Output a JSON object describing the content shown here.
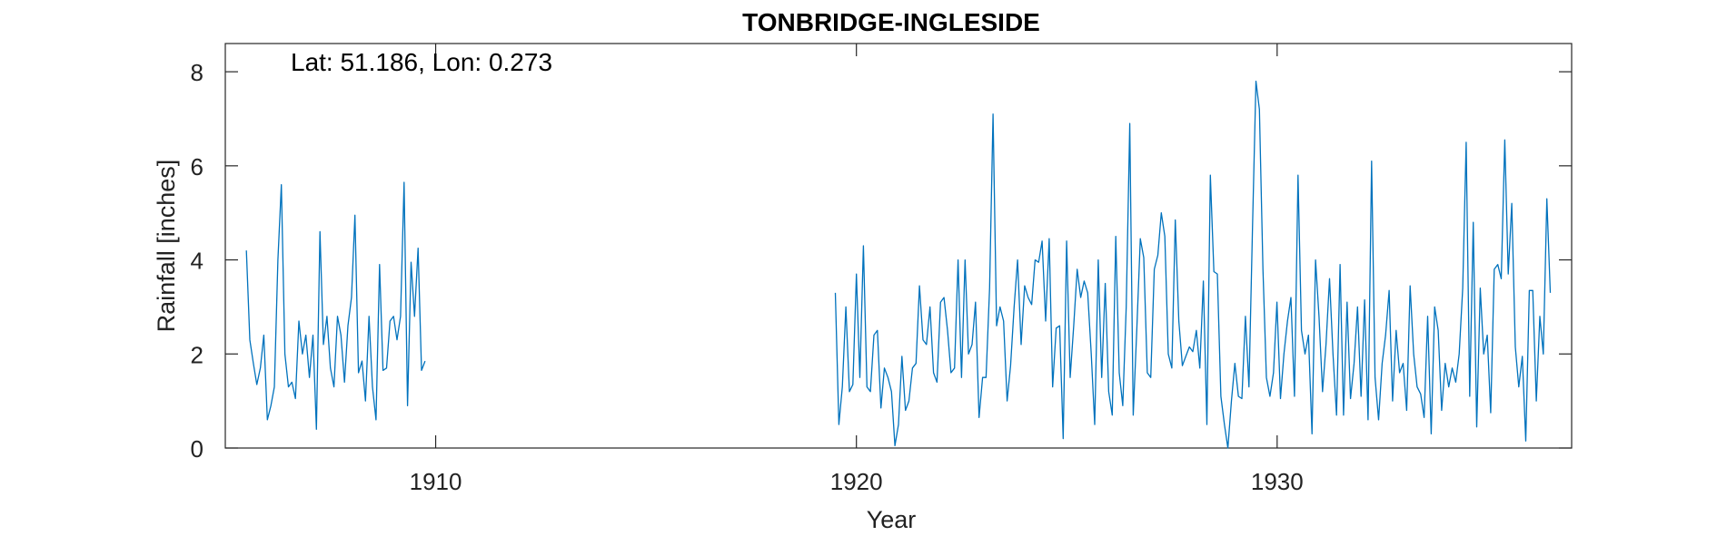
{
  "chart_data": {
    "type": "line",
    "title": "TONBRIDGE-INGLESIDE",
    "xlabel": "Year",
    "ylabel": "Rainfall [inches]",
    "annotation": "Lat: 51.186, Lon: 0.273",
    "xlim": [
      1905,
      1937
    ],
    "ylim": [
      0,
      8.6
    ],
    "xticks": [
      1910,
      1920,
      1930
    ],
    "yticks": [
      0,
      2,
      4,
      6,
      8
    ],
    "grid": false,
    "color": "#0072bd",
    "series": [
      {
        "segments": [
          {
            "start_year": 1905.5,
            "step": 0.0833,
            "values": [
              4.2,
              2.3,
              1.8,
              1.35,
              1.7,
              2.4,
              0.6,
              0.9,
              1.3,
              4.0,
              5.6,
              2.0,
              1.3,
              1.4,
              1.05,
              2.7,
              2.0,
              2.4,
              1.5,
              2.4,
              0.4,
              4.6,
              2.2,
              2.8,
              1.7,
              1.3,
              2.8,
              2.4,
              1.4,
              2.6,
              3.2,
              4.95,
              1.6,
              1.85,
              1.0,
              2.8,
              1.3,
              0.6,
              3.9,
              1.65,
              1.7,
              2.7,
              2.8,
              2.3,
              2.8,
              5.65,
              0.9,
              3.95,
              2.8,
              4.25,
              1.65,
              1.85
            ]
          },
          {
            "start_year": 1919.5,
            "step": 0.0833,
            "values": [
              3.3,
              0.5,
              1.3,
              3.0,
              1.2,
              1.35,
              3.7,
              1.5,
              4.3,
              1.3,
              1.2,
              2.4,
              2.5,
              0.85,
              1.7,
              1.5,
              1.2,
              0.05,
              0.5,
              1.95,
              0.8,
              1.0,
              1.7,
              1.8,
              3.45,
              2.3,
              2.2,
              3.0,
              1.6,
              1.4,
              3.1,
              3.2,
              2.5,
              1.6,
              1.7,
              4.0,
              1.5,
              4.0,
              2.0,
              2.2,
              3.1,
              0.65,
              1.5,
              1.5,
              3.4,
              7.1,
              2.6,
              3.0,
              2.7,
              1.0,
              1.75,
              3.0,
              4.0,
              2.2,
              3.45,
              3.2,
              3.05,
              4.0,
              3.95,
              4.4,
              2.7,
              4.45,
              1.3,
              2.55,
              2.6,
              0.2,
              4.4,
              1.5,
              2.6,
              3.8,
              3.2,
              3.55,
              3.3,
              2.0,
              0.5,
              4.0,
              1.5,
              3.5,
              1.2,
              0.7,
              4.5,
              1.6,
              0.9,
              3.0,
              6.9,
              0.7,
              2.5,
              4.45,
              4.05,
              1.6,
              1.5,
              3.8,
              4.1,
              5.0,
              4.5,
              2.0,
              1.7,
              4.85,
              2.7,
              1.75,
              1.95,
              2.15,
              2.05,
              2.5,
              1.7,
              3.55,
              0.5,
              5.8,
              3.75,
              3.7,
              1.1,
              0.5,
              0.0,
              1.0,
              1.8,
              1.1,
              1.05,
              2.8,
              1.3,
              4.6,
              7.8,
              7.2,
              3.8,
              1.5,
              1.1,
              1.6,
              3.1,
              1.05,
              2.0,
              2.7,
              3.2,
              1.1,
              5.8,
              2.5,
              2.0,
              2.4,
              0.3,
              4.0,
              2.8,
              1.2,
              2.2,
              3.6,
              2.0,
              0.7,
              3.9,
              0.7,
              3.1,
              1.05,
              1.8,
              3.0,
              1.1,
              3.15,
              0.6,
              6.1,
              1.5,
              0.6,
              1.8,
              2.4,
              3.35,
              1.0,
              2.5,
              1.6,
              1.8,
              0.8,
              3.45,
              2.0,
              1.3,
              1.15,
              0.65,
              2.8,
              0.3,
              3.0,
              2.5,
              0.8,
              1.8,
              1.3,
              1.7,
              1.4,
              2.0,
              3.4,
              6.5,
              1.1,
              4.8,
              0.45,
              3.4,
              2.0,
              2.4,
              0.75,
              3.8,
              3.9,
              3.6,
              6.55,
              3.7,
              5.2,
              2.15,
              1.3,
              1.95,
              0.15,
              3.35,
              3.35,
              1.0,
              2.8,
              2.0,
              5.3,
              3.3
            ]
          }
        ]
      }
    ]
  }
}
